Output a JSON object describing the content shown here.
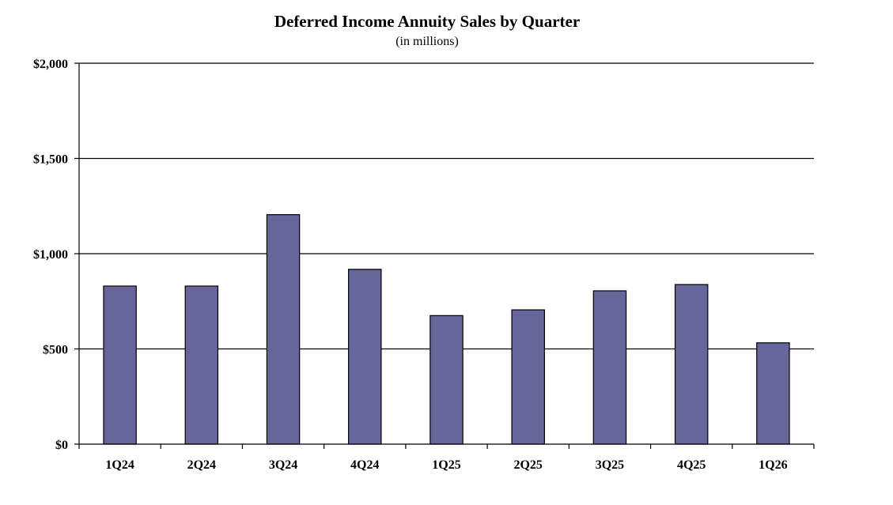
{
  "chart_data": {
    "type": "bar",
    "title": "Deferred Income Annuity Sales by Quarter",
    "subtitle": "(in millions)",
    "xlabel": "",
    "ylabel": "",
    "categories": [
      "1Q24",
      "2Q24",
      "3Q24",
      "4Q24",
      "1Q25",
      "2Q25",
      "3Q25",
      "4Q25",
      "1Q26"
    ],
    "values": [
      830,
      830,
      1205,
      918,
      675,
      705,
      805,
      838,
      532
    ],
    "ylim": [
      0,
      2000
    ],
    "yticks": [
      0,
      500,
      1000,
      1500,
      2000
    ],
    "ytick_labels": [
      "$0",
      "$500",
      "$1,000",
      "$1,500",
      "$2,000"
    ],
    "grid": true,
    "legend": "none",
    "bar_color": "#66669a"
  }
}
